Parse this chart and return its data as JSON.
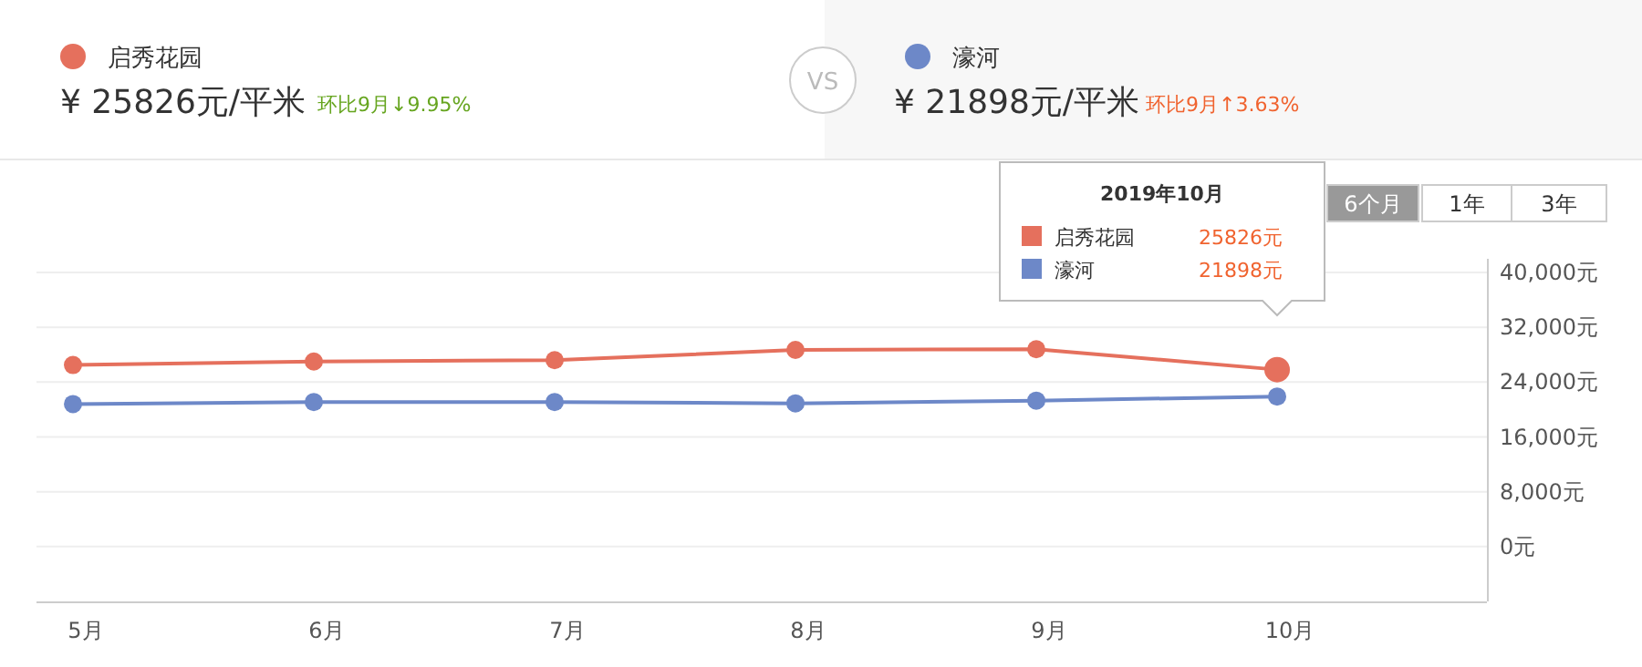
{
  "chart_data": {
    "type": "line",
    "categories": [
      "5月",
      "6月",
      "7月",
      "8月",
      "9月",
      "10月"
    ],
    "series": [
      {
        "name": "启秀花园",
        "color": "#e5705d",
        "values": [
          26500,
          27000,
          27200,
          28700,
          28800,
          25826
        ]
      },
      {
        "name": "濠河",
        "color": "#6d88c8",
        "values": [
          20800,
          21100,
          21100,
          20900,
          21300,
          21898
        ]
      }
    ],
    "ylim": [
      -8000,
      42000
    ],
    "yticks": [
      {
        "value": 0,
        "label": "0元"
      },
      {
        "value": 8000,
        "label": "8,000元"
      },
      {
        "value": 16000,
        "label": "16,000元"
      },
      {
        "value": 24000,
        "label": "24,000元"
      },
      {
        "value": 32000,
        "label": "32,000元"
      },
      {
        "value": 40000,
        "label": "40,000元"
      }
    ],
    "grid": "y",
    "legend": "top",
    "marker": "circle",
    "line_style": "solid",
    "annotations": [
      "¥ 25826元/平米",
      "环比9月↓9.95%",
      "VS",
      "¥ 21898元/平米",
      "环比9月↑3.63%",
      "6个月",
      "1年",
      "3年",
      "2019年10月",
      "25826元",
      "21898元"
    ]
  }
}
